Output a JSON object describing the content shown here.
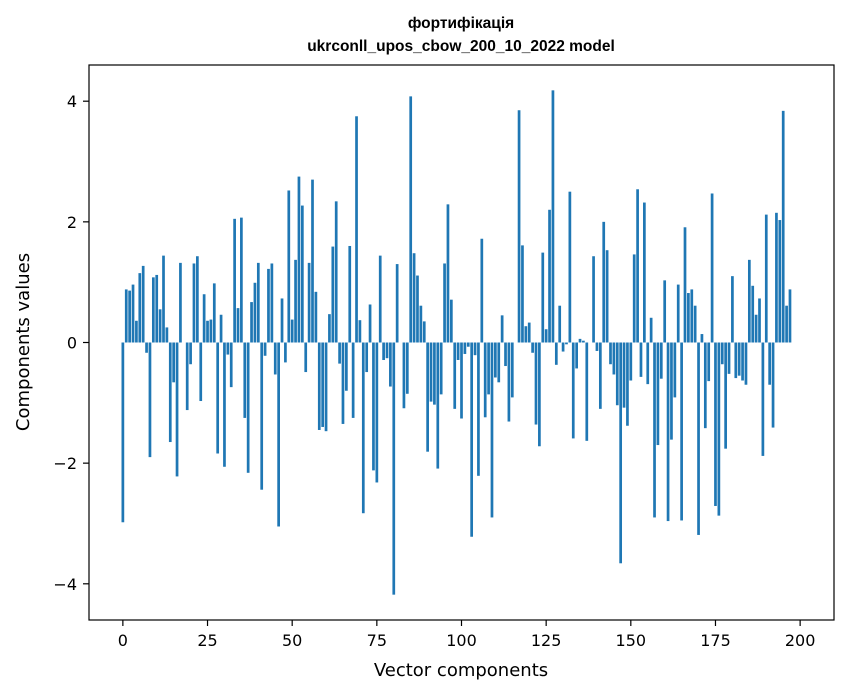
{
  "chart_data": {
    "type": "bar",
    "title": "фортифікація",
    "subtitle": "ukrconll_upos_cbow_200_10_2022 model",
    "xlabel": "Vector components",
    "ylabel": "Components values",
    "xlim": [
      -10,
      210
    ],
    "ylim": [
      -4.6,
      4.6
    ],
    "xticks": [
      0,
      25,
      50,
      75,
      100,
      125,
      150,
      175,
      200
    ],
    "xtick_labels": [
      "0",
      "25",
      "50",
      "75",
      "100",
      "125",
      "150",
      "175",
      "200"
    ],
    "yticks": [
      -4,
      -2,
      0,
      2,
      4
    ],
    "ytick_labels": [
      "−4",
      "−2",
      "0",
      "2",
      "4"
    ],
    "grid": false,
    "bar_color": "#1f77b4",
    "values": [
      -2.98,
      0.88,
      0.86,
      0.96,
      0.36,
      1.15,
      1.27,
      -0.17,
      -1.9,
      1.08,
      1.12,
      0.55,
      1.44,
      0.25,
      -1.65,
      -0.66,
      -2.22,
      1.32,
      0.0,
      -1.12,
      -0.36,
      1.31,
      1.43,
      -0.97,
      0.8,
      0.36,
      0.38,
      0.98,
      -1.84,
      0.46,
      -2.06,
      -0.2,
      -0.74,
      2.05,
      0.57,
      2.07,
      -1.25,
      -2.16,
      0.67,
      0.99,
      1.32,
      -2.44,
      -0.22,
      1.22,
      1.31,
      -0.53,
      -3.05,
      0.73,
      -0.33,
      2.52,
      0.38,
      1.37,
      2.75,
      2.27,
      -0.49,
      1.32,
      2.7,
      0.84,
      -1.45,
      -1.4,
      -1.47,
      0.47,
      1.59,
      2.34,
      -0.35,
      -1.35,
      -0.8,
      1.6,
      -1.25,
      3.75,
      0.37,
      -2.83,
      -0.49,
      0.63,
      -2.12,
      -2.32,
      1.44,
      -0.29,
      -0.26,
      -0.73,
      -4.18,
      1.3,
      0.0,
      -1.09,
      -0.85,
      4.08,
      1.48,
      1.11,
      0.61,
      0.35,
      -1.81,
      -0.98,
      -1.03,
      -2.09,
      -0.86,
      1.31,
      2.29,
      0.71,
      -1.1,
      -0.29,
      -1.26,
      -0.19,
      -0.07,
      -3.22,
      -0.21,
      -2.21,
      1.72,
      -1.24,
      -0.86,
      -2.9,
      -0.58,
      -0.66,
      0.45,
      -0.39,
      -1.31,
      -0.91,
      0.0,
      3.85,
      1.61,
      0.27,
      0.33,
      -0.17,
      -1.36,
      -1.72,
      1.49,
      0.22,
      2.2,
      4.18,
      -0.37,
      0.61,
      -0.15,
      -0.03,
      2.5,
      -1.59,
      -0.43,
      0.06,
      0.03,
      -1.63,
      0.0,
      1.43,
      -0.14,
      -1.1,
      2.0,
      1.53,
      -0.36,
      -0.53,
      -1.04,
      -3.66,
      -1.08,
      -1.38,
      -0.63,
      1.46,
      2.54,
      -0.57,
      2.32,
      -0.69,
      0.41,
      -2.9,
      -1.7,
      -0.6,
      1.03,
      -2.96,
      -1.61,
      -0.91,
      0.96,
      -2.95,
      1.91,
      0.82,
      0.88,
      0.61,
      -3.19,
      0.14,
      -1.42,
      -0.64,
      2.47,
      -2.71,
      -2.87,
      -0.36,
      -1.76,
      -0.52,
      1.1,
      -0.59,
      -0.55,
      -0.63,
      -0.7,
      1.37,
      0.94,
      0.46,
      0.73,
      -1.88,
      2.12,
      -0.7,
      -1.41,
      2.15,
      2.03,
      3.84,
      0.61,
      0.88
    ]
  }
}
